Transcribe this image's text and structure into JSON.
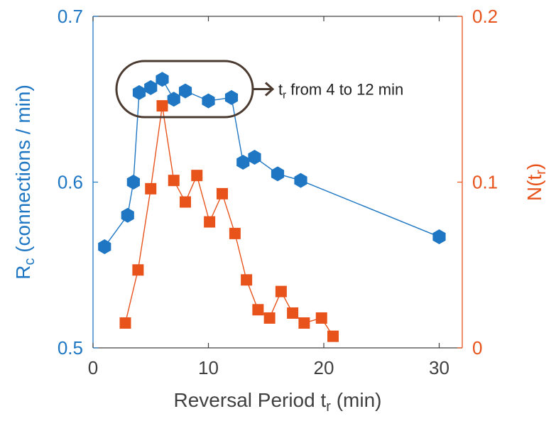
{
  "chart_data": {
    "type": "line",
    "xlabel": "Reversal Period t",
    "xlabel_sub": "r",
    "xlabel_suffix": " (min)",
    "xlim": [
      0,
      32
    ],
    "xticks": [
      0,
      10,
      20,
      30
    ],
    "xtick_labels": [
      "0",
      "10",
      "20",
      "30"
    ],
    "ylabel_left": "R",
    "ylabel_left_sub": "c",
    "ylabel_left_suffix": " (connections / min)",
    "ylim_left": [
      0.5,
      0.7
    ],
    "yticks_left": [
      0.5,
      0.6,
      0.7
    ],
    "ytick_labels_left": [
      "0.5",
      "0.6",
      "0.7"
    ],
    "ylabel_right": "N(t",
    "ylabel_right_sub": "r",
    "ylabel_right_suffix": ")",
    "ylim_right": [
      0,
      0.2
    ],
    "yticks_right": [
      0,
      0.1,
      0.2
    ],
    "ytick_labels_right": [
      "0",
      "0.1",
      "0.2"
    ],
    "grid": false,
    "colors": {
      "left": "#1f77c4",
      "right": "#e8531c"
    },
    "series": [
      {
        "axis": "left",
        "marker": "hexagon",
        "color": "#1f77c4",
        "x": [
          1,
          3,
          3.5,
          4,
          5,
          6,
          7,
          8,
          10,
          12,
          13,
          14,
          16,
          18,
          30
        ],
        "y": [
          0.561,
          0.58,
          0.6,
          0.654,
          0.657,
          0.662,
          0.65,
          0.655,
          0.649,
          0.651,
          0.612,
          0.615,
          0.605,
          0.601,
          0.567
        ]
      },
      {
        "axis": "right",
        "marker": "square",
        "color": "#e8531c",
        "x": [
          2.8,
          3.9,
          5,
          6,
          7,
          8,
          9,
          10.1,
          11.2,
          12.3,
          13.3,
          14.3,
          15.3,
          16.3,
          17.3,
          18.3,
          19.8,
          20.8
        ],
        "y": [
          0.015,
          0.047,
          0.096,
          0.146,
          0.101,
          0.088,
          0.104,
          0.076,
          0.093,
          0.069,
          0.041,
          0.023,
          0.018,
          0.034,
          0.021,
          0.015,
          0.018,
          0.007
        ]
      }
    ],
    "annotation": {
      "text_pre": "t",
      "text_sub": "r",
      "text_post": " from 4 to 12 min"
    }
  }
}
